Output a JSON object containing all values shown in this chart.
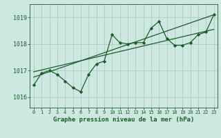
{
  "title": "Graphe pression niveau de la mer (hPa)",
  "bg_color": "#cce8e0",
  "grid_color": "#aaccc4",
  "line_color": "#1a5c28",
  "xlim": [
    -0.5,
    23.5
  ],
  "ylim": [
    1015.6,
    1019.5
  ],
  "yticks": [
    1016,
    1017,
    1018,
    1019
  ],
  "xtick_labels": [
    "0",
    "1",
    "2",
    "3",
    "4",
    "5",
    "6",
    "7",
    "8",
    "9",
    "10",
    "11",
    "12",
    "13",
    "14",
    "15",
    "16",
    "17",
    "18",
    "19",
    "20",
    "21",
    "22",
    "23"
  ],
  "x": [
    0,
    1,
    2,
    3,
    4,
    5,
    6,
    7,
    8,
    9,
    10,
    11,
    12,
    13,
    14,
    15,
    16,
    17,
    18,
    19,
    20,
    21,
    22,
    23
  ],
  "y": [
    1016.45,
    1016.9,
    1017.0,
    1016.85,
    1016.6,
    1016.35,
    1016.2,
    1016.85,
    1017.25,
    1017.35,
    1018.35,
    1018.05,
    1018.0,
    1018.05,
    1018.05,
    1018.6,
    1018.85,
    1018.2,
    1017.95,
    1017.95,
    1018.05,
    1018.35,
    1018.45,
    1019.1
  ],
  "trend1_x": [
    0,
    23
  ],
  "trend1_y": [
    1016.75,
    1019.1
  ],
  "trend2_x": [
    0,
    23
  ],
  "trend2_y": [
    1016.95,
    1018.55
  ]
}
